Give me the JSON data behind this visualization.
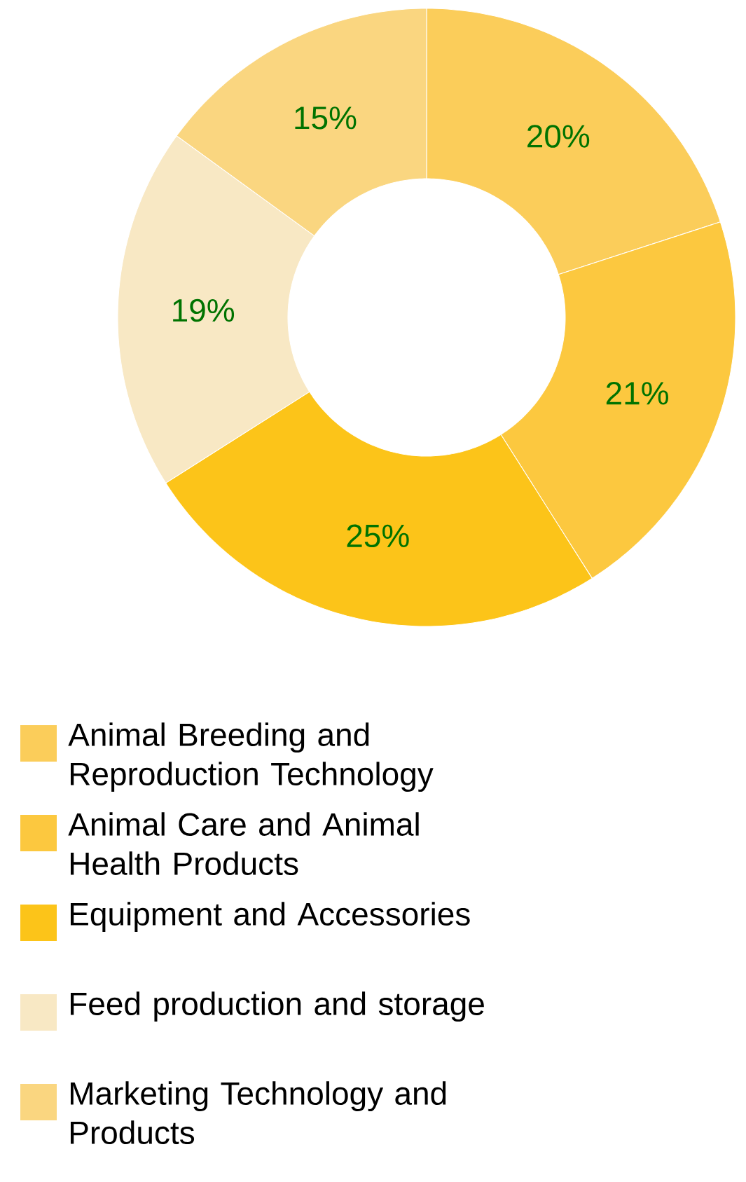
{
  "chart_data": {
    "type": "donut",
    "categories": [
      "Animal Breeding and Reproduction Technology",
      "Animal Care and Animal Health Products",
      "Equipment and Accessories",
      "Feed production and storage",
      "Marketing Technology and Products"
    ],
    "values": [
      20,
      21,
      25,
      19,
      15
    ],
    "value_labels": [
      "20%",
      "21%",
      "25%",
      "19%",
      "15%"
    ],
    "colors": [
      "#fbcd5a",
      "#fcc83f",
      "#fcc419",
      "#f8e8c4",
      "#fad680"
    ],
    "legend": "bottom"
  }
}
